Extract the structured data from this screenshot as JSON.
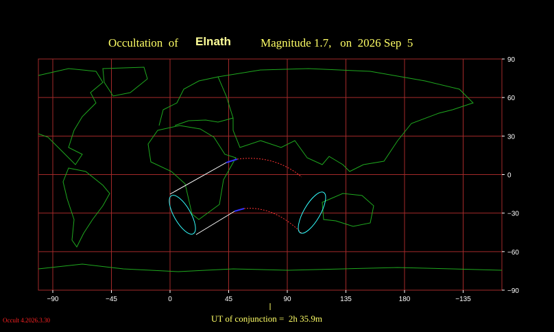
{
  "header": {
    "prefix": "Occultation  of",
    "star": "Elnath",
    "details": "Magnitude 1.7,   on  2026 Sep  5"
  },
  "map": {
    "lon_ticks": [
      {
        "value": -90,
        "label": "−90"
      },
      {
        "value": -45,
        "label": "−45"
      },
      0,
      45,
      90,
      135,
      180,
      {
        "value": -135,
        "label": "−135"
      }
    ],
    "lat_ticks": [
      90,
      60,
      30,
      0,
      {
        "value": -30,
        "label": "−30"
      },
      {
        "value": -60,
        "label": "−60"
      },
      {
        "value": -90,
        "label": "−90"
      }
    ]
  },
  "footer": {
    "conjunction": "UT of conjunction =  2h 35.9m",
    "version": "Occult 4.2026.3.30"
  }
}
